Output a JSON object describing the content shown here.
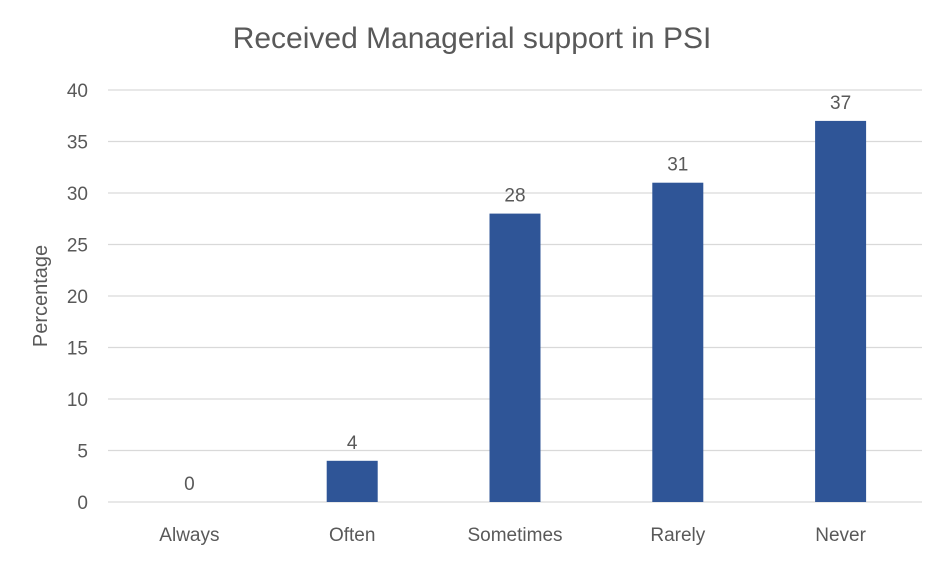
{
  "chart_data": {
    "type": "bar",
    "title": "Received Managerial support in PSI",
    "xlabel": "",
    "ylabel": "Percentage",
    "categories": [
      "Always",
      "Often",
      "Sometimes",
      "Rarely",
      "Never"
    ],
    "values": [
      0,
      4,
      28,
      31,
      37
    ],
    "data_labels": [
      "0",
      "4",
      "28",
      "31",
      "37"
    ],
    "ylim": [
      0,
      40
    ],
    "yticks": [
      0,
      5,
      10,
      15,
      20,
      25,
      30,
      35,
      40
    ],
    "grid": true,
    "legend": "none",
    "colors": {
      "bar": "#2F5597",
      "grid": "#D9D9D9",
      "text": "#595959"
    }
  }
}
